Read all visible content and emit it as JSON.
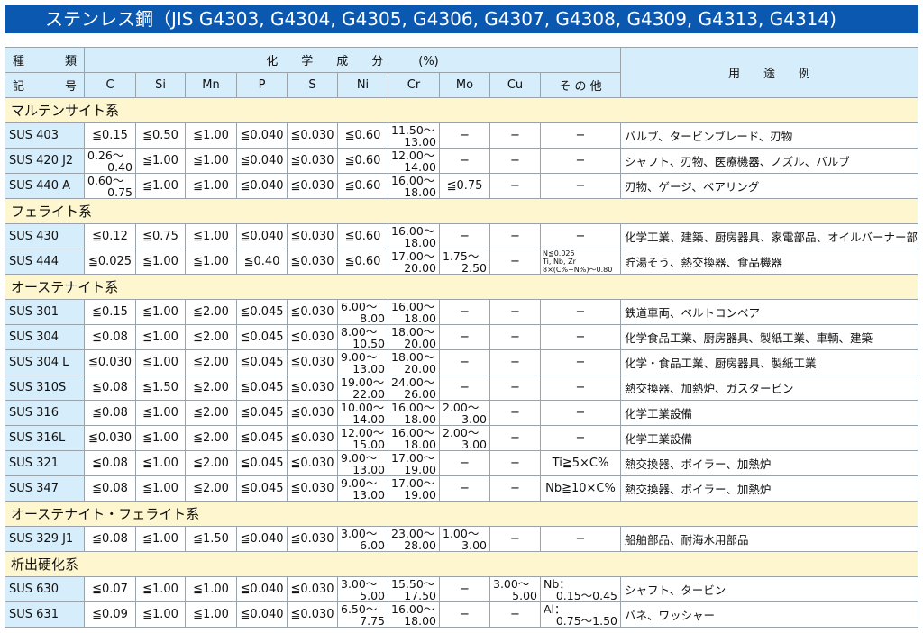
{
  "title": "ステンレス鋼（JIS G4303, G4304, G4305, G4306, G4307, G4308, G4309, G4313, G4314)",
  "header": {
    "kind_top": [
      "種",
      "類"
    ],
    "kind_bottom": [
      "記",
      "号"
    ],
    "composition": "化　　学　　成　　分　　　(%)",
    "use": "用　　途　　例",
    "columns": [
      "C",
      "Si",
      "Mn",
      "P",
      "S",
      "Ni",
      "Cr",
      "Mo",
      "Cu",
      "そ の 他"
    ]
  },
  "groups": [
    {
      "name": "マルテンサイト系",
      "rows": [
        {
          "id": "SUS 403",
          "v": [
            "≦0.15",
            "≦0.50",
            "≦1.00",
            "≦0.040",
            "≦0.030",
            "≦0.60",
            [
              "11.50〜",
              "13.00"
            ],
            "−",
            "−",
            "−"
          ],
          "use": "バルブ、タービンブレード、刃物"
        },
        {
          "id": "SUS 420 J2",
          "v": [
            [
              "0.26〜",
              "0.40"
            ],
            "≦1.00",
            "≦1.00",
            "≦0.040",
            "≦0.030",
            "≦0.60",
            [
              "12.00〜",
              "14.00"
            ],
            "−",
            "−",
            "−"
          ],
          "use": "シャフト、刃物、医療機器、ノズル、バルブ"
        },
        {
          "id": "SUS 440 A",
          "v": [
            [
              "0.60〜",
              "0.75"
            ],
            "≦1.00",
            "≦1.00",
            "≦0.040",
            "≦0.030",
            "≦0.60",
            [
              "16.00〜",
              "18.00"
            ],
            "≦0.75",
            "−",
            "−"
          ],
          "use": "刃物、ゲージ、ベアリング"
        }
      ]
    },
    {
      "name": "フェライト系",
      "rows": [
        {
          "id": "SUS 430",
          "v": [
            "≦0.12",
            "≦0.75",
            "≦1.00",
            "≦0.040",
            "≦0.030",
            "≦0.60",
            [
              "16.00〜",
              "18.00"
            ],
            "−",
            "−",
            "−"
          ],
          "use": "化学工業、建築、厨房器具、家電部品、オイルバーナー部品"
        },
        {
          "id": "SUS 444",
          "v": [
            "≦0.025",
            "≦1.00",
            "≦1.00",
            "≦0.40",
            "≦0.030",
            "≦0.60",
            [
              "17.00〜",
              "20.00"
            ],
            [
              "1.75〜",
              "2.50"
            ],
            "−",
            {
              "small": [
                "N≦0.025",
                "Ti, Nb, Zr",
                "8×(C%+N%)〜0.80"
              ]
            }
          ],
          "use": "貯湯そう、熱交換器、食品機器"
        }
      ]
    },
    {
      "name": "オーステナイト系",
      "rows": [
        {
          "id": "SUS 301",
          "v": [
            "≦0.15",
            "≦1.00",
            "≦2.00",
            "≦0.045",
            "≦0.030",
            [
              "6.00〜",
              "8.00"
            ],
            [
              "16.00〜",
              "18.00"
            ],
            "−",
            "−",
            "−"
          ],
          "use": "鉄道車両、ベルトコンベア"
        },
        {
          "id": "SUS 304",
          "v": [
            "≦0.08",
            "≦1.00",
            "≦2.00",
            "≦0.045",
            "≦0.030",
            [
              "8.00〜",
              "10.50"
            ],
            [
              "18.00〜",
              "20.00"
            ],
            "−",
            "−",
            "−"
          ],
          "use": "化学食品工業、厨房器具、製紙工業、車輌、建築"
        },
        {
          "id": "SUS 304 L",
          "v": [
            "≦0.030",
            "≦1.00",
            "≦2.00",
            "≦0.045",
            "≦0.030",
            [
              "9.00〜",
              "13.00"
            ],
            [
              "18.00〜",
              "20.00"
            ],
            "−",
            "−",
            "−"
          ],
          "use": "化学・食品工業、厨房器具、製紙工業"
        },
        {
          "id": "SUS 310S",
          "v": [
            "≦0.08",
            "≦1.50",
            "≦2.00",
            "≦0.045",
            "≦0.030",
            [
              "19.00〜",
              "22.00"
            ],
            [
              "24.00〜",
              "26.00"
            ],
            "−",
            "−",
            "−"
          ],
          "use": "熱交換器、加熱炉、ガスタービン"
        },
        {
          "id": "SUS 316",
          "v": [
            "≦0.08",
            "≦1.00",
            "≦2.00",
            "≦0.045",
            "≦0.030",
            [
              "10.00〜",
              "14.00"
            ],
            [
              "16.00〜",
              "18.00"
            ],
            [
              "2.00〜",
              "3.00"
            ],
            "−",
            "−"
          ],
          "use": "化学工業設備"
        },
        {
          "id": "SUS 316L",
          "v": [
            "≦0.030",
            "≦1.00",
            "≦2.00",
            "≦0.045",
            "≦0.030",
            [
              "12.00〜",
              "15.00"
            ],
            [
              "16.00〜",
              "18.00"
            ],
            [
              "2.00〜",
              "3.00"
            ],
            "−",
            "−"
          ],
          "use": "化学工業設備"
        },
        {
          "id": "SUS 321",
          "v": [
            "≦0.08",
            "≦1.00",
            "≦2.00",
            "≦0.045",
            "≦0.030",
            [
              "9.00〜",
              "13.00"
            ],
            [
              "17.00〜",
              "19.00"
            ],
            "−",
            "−",
            "Ti≧5×C%"
          ],
          "use": "熱交換器、ボイラー、加熱炉"
        },
        {
          "id": "SUS 347",
          "v": [
            "≦0.08",
            "≦1.00",
            "≦2.00",
            "≦0.045",
            "≦0.030",
            [
              "9.00〜",
              "13.00"
            ],
            [
              "17.00〜",
              "19.00"
            ],
            "−",
            "−",
            "Nb≧10×C%"
          ],
          "use": "熱交換器、ボイラー、加熱炉"
        }
      ]
    },
    {
      "name": "オーステナイト・フェライト系",
      "rows": [
        {
          "id": "SUS 329 J1",
          "v": [
            "≦0.08",
            "≦1.00",
            "≦1.50",
            "≦0.040",
            "≦0.030",
            [
              "3.00〜",
              "6.00"
            ],
            [
              "23.00〜",
              "28.00"
            ],
            [
              "1.00〜",
              "3.00"
            ],
            "−",
            "−"
          ],
          "use": "船舶部品、耐海水用部品"
        }
      ]
    },
    {
      "name": "析出硬化系",
      "rows": [
        {
          "id": "SUS 630",
          "v": [
            "≦0.07",
            "≦1.00",
            "≦1.00",
            "≦0.040",
            "≦0.030",
            [
              "3.00〜",
              "5.00"
            ],
            [
              "15.50〜",
              "17.50"
            ],
            "−",
            [
              "3.00〜",
              "5.00"
            ],
            [
              "Nb：",
              "0.15〜0.45"
            ]
          ],
          "use": "シャフト、タービン"
        },
        {
          "id": "SUS 631",
          "v": [
            "≦0.09",
            "≦1.00",
            "≦1.00",
            "≦0.040",
            "≦0.030",
            [
              "6.50〜",
              "7.75"
            ],
            [
              "16.00〜",
              "18.00"
            ],
            "−",
            "−",
            [
              "Al：",
              "0.75〜1.50"
            ]
          ],
          "use": "バネ、ワッシャー"
        }
      ]
    }
  ]
}
